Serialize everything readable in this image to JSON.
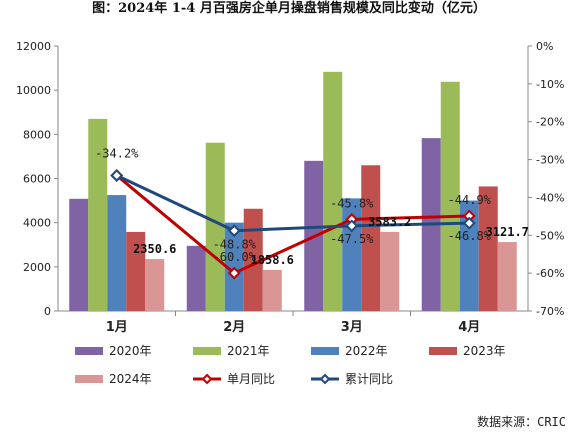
{
  "chart_data": {
    "type": "bar",
    "title": "图：2024年 1-4 月百强房企单月操盘销售规模及同比变动（亿元）",
    "categories": [
      "1月",
      "2月",
      "3月",
      "4月"
    ],
    "ylim": [
      0,
      12000
    ],
    "y_ticks": [
      "0",
      "2000",
      "4000",
      "6000",
      "8000",
      "10000",
      "12000"
    ],
    "y2lim": [
      -70,
      0
    ],
    "y2_ticks": [
      "0%",
      "-10%",
      "-20%",
      "-30%",
      "-40%",
      "-50%",
      "-60%",
      "-70%"
    ],
    "series": [
      {
        "name": "2020年",
        "color": "#7f63a4",
        "values": [
          5080,
          2950,
          6800,
          7830
        ]
      },
      {
        "name": "2021年",
        "color": "#9bbb59",
        "values": [
          8700,
          7620,
          10830,
          10380
        ]
      },
      {
        "name": "2022年",
        "color": "#4f81bd",
        "values": [
          5250,
          4000,
          5100,
          5000
        ]
      },
      {
        "name": "2023年",
        "color": "#c0504d",
        "values": [
          3580,
          4630,
          6600,
          5640
        ]
      },
      {
        "name": "2024年",
        "color": "#d99694",
        "values": [
          2350.6,
          1858.6,
          3583.2,
          3121.7
        ]
      }
    ],
    "lines": [
      {
        "name": "单月同比",
        "color": "#c00000",
        "values": [
          -34.2,
          -60.0,
          -45.8,
          -44.9
        ]
      },
      {
        "name": "累计同比",
        "color": "#1f497d",
        "values": [
          -34.2,
          -48.8,
          -47.5,
          -46.8
        ]
      }
    ],
    "bar_labels_2024": [
      "2350.6",
      "1858.6",
      "3583.2",
      "3121.7"
    ],
    "line_labels": {
      "monthly": [
        "-34.2%",
        "-60.0%",
        "-45.8%",
        "-44.9%"
      ],
      "cumulative": [
        "",
        "-48.8%",
        "-47.5%",
        "-46.8%"
      ]
    },
    "legend": [
      "2020年",
      "2021年",
      "2022年",
      "2023年",
      "2024年",
      "单月同比",
      "累计同比"
    ],
    "legend_position": "bottom",
    "grid": false
  },
  "source": "数据来源：CRIC"
}
